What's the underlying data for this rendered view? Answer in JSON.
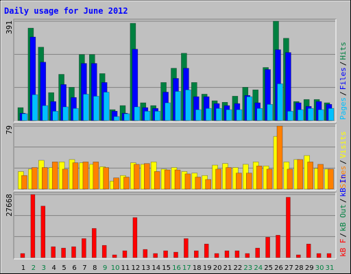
{
  "chart_data": [
    {
      "type": "bar",
      "title": "Daily usage for June 2012",
      "ylim": [
        0,
        391
      ],
      "yticks": [
        391
      ],
      "legend_separator": "/",
      "series": [
        {
          "name": "Hits",
          "color": "#008040",
          "values": [
            51,
            364,
            289,
            110,
            182,
            131,
            260,
            260,
            185,
            43,
            59,
            383,
            70,
            59,
            150,
            206,
            265,
            150,
            104,
            78,
            72,
            96,
            131,
            121,
            209,
            391,
            324,
            75,
            83,
            83,
            70
          ]
        },
        {
          "name": "Files",
          "color": "#0000ff",
          "values": [
            29,
            329,
            230,
            75,
            142,
            91,
            225,
            225,
            150,
            37,
            29,
            281,
            51,
            48,
            112,
            166,
            206,
            94,
            94,
            67,
            59,
            67,
            99,
            70,
            201,
            279,
            268,
            70,
            56,
            75,
            64
          ]
        },
        {
          "name": "Pages",
          "color": "#00c0ff",
          "values": [
            27,
            102,
            59,
            37,
            54,
            48,
            104,
            96,
            112,
            16,
            27,
            54,
            37,
            37,
            70,
            115,
            121,
            43,
            48,
            48,
            43,
            43,
            94,
            48,
            64,
            145,
            37,
            43,
            48,
            43,
            48
          ]
        }
      ]
    },
    {
      "type": "bar",
      "ylim": [
        0,
        79
      ],
      "yticks": [
        79
      ],
      "legend_separator": "/",
      "series": [
        {
          "name": "Visits",
          "color": "#ffff00",
          "values": [
            22,
            25,
            36,
            27,
            34,
            37,
            33,
            31,
            28,
            10,
            17,
            33,
            31,
            34,
            25,
            27,
            22,
            20,
            17,
            30,
            32,
            27,
            31,
            34,
            29,
            66,
            34,
            37,
            42,
            26,
            25
          ]
        },
        {
          "name": "Sites",
          "color": "#ff8000",
          "values": [
            17,
            27,
            27,
            34,
            25,
            33,
            34,
            34,
            27,
            14,
            15,
            31,
            32,
            22,
            24,
            24,
            19,
            15,
            12,
            25,
            27,
            20,
            20,
            29,
            25,
            79,
            25,
            37,
            34,
            31,
            25
          ]
        }
      ]
    },
    {
      "type": "bar",
      "ylim": [
        0,
        27668
      ],
      "yticks": [
        27668
      ],
      "legend_separator": "/",
      "categories": [
        "1",
        "2",
        "3",
        "4",
        "5",
        "6",
        "7",
        "8",
        "9",
        "10",
        "11",
        "12",
        "13",
        "14",
        "15",
        "16",
        "17",
        "18",
        "19",
        "20",
        "21",
        "22",
        "23",
        "24",
        "25",
        "26",
        "27",
        "28",
        "29",
        "30",
        "31"
      ],
      "category_colors": [
        "#000000",
        "#008040",
        "#008040",
        "#000000",
        "#000000",
        "#000000",
        "#000000",
        "#000000",
        "#008040",
        "#008040",
        "#000000",
        "#000000",
        "#000000",
        "#000000",
        "#000000",
        "#008040",
        "#008040",
        "#000000",
        "#000000",
        "#000000",
        "#000000",
        "#000000",
        "#008040",
        "#008040",
        "#000000",
        "#000000",
        "#000000",
        "#000000",
        "#000000",
        "#008040",
        "#008040"
      ],
      "series": [
        {
          "name": "kB F",
          "color": "#ff0000",
          "values": [
            1785,
            27668,
            22610,
            4760,
            4165,
            4760,
            8330,
            12793,
            5355,
            1190,
            2975,
            17553,
            3570,
            1785,
            2975,
            2380,
            8330,
            2975,
            5950,
            1785,
            2975,
            2975,
            1785,
            4165,
            8925,
            9818,
            26478,
            1190,
            5950,
            1785,
            1785
          ]
        }
      ],
      "extra_legend": [
        {
          "name": "kB Out",
          "color": "#008040"
        },
        {
          "name": "kB In",
          "color": "#0000ff"
        }
      ]
    }
  ]
}
